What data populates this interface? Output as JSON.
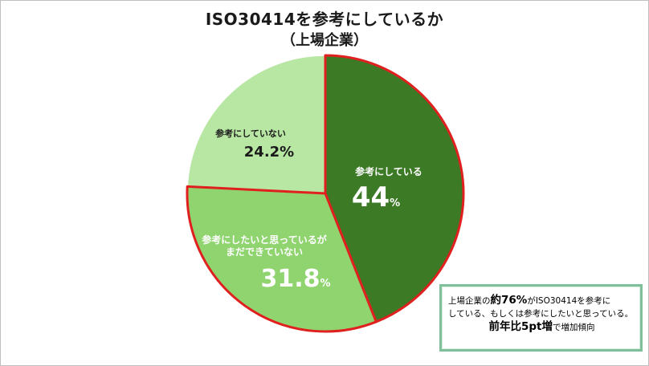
{
  "title": {
    "line1": "ISO30414を参考にしているか",
    "line2": "（上場企業）"
  },
  "chart_data": {
    "type": "pie",
    "title": "ISO30414を参考にしているか（上場企業）",
    "start_angle_deg": 0,
    "direction": "clockwise",
    "slices": [
      {
        "label": "参考にしている",
        "value": 44,
        "value_label": "44",
        "unit": "%",
        "color": "#3c7a26",
        "outline": "#e0201f"
      },
      {
        "label": "参考にしたいと思っているがまだできていない",
        "label_lines": [
          "参考にしたいと思っているが",
          "まだできていない"
        ],
        "value": 31.8,
        "value_label": "31.8",
        "unit": "%",
        "color": "#8fd46f",
        "outline": "#e0201f"
      },
      {
        "label": "参考にしていない",
        "value": 24.2,
        "value_label": "24.2%",
        "unit": "",
        "color": "#b8e6a3",
        "outline": "#ffffff"
      }
    ]
  },
  "note": {
    "part1": "上場企業の",
    "emph1": "約76%",
    "part2": "がISO30414を参考に",
    "line2": "している、もしくは参考にしたいと思っている。",
    "emph2": "前年比5pt増",
    "part3": "で増加傾向",
    "border_color": "#7fbf9a"
  }
}
